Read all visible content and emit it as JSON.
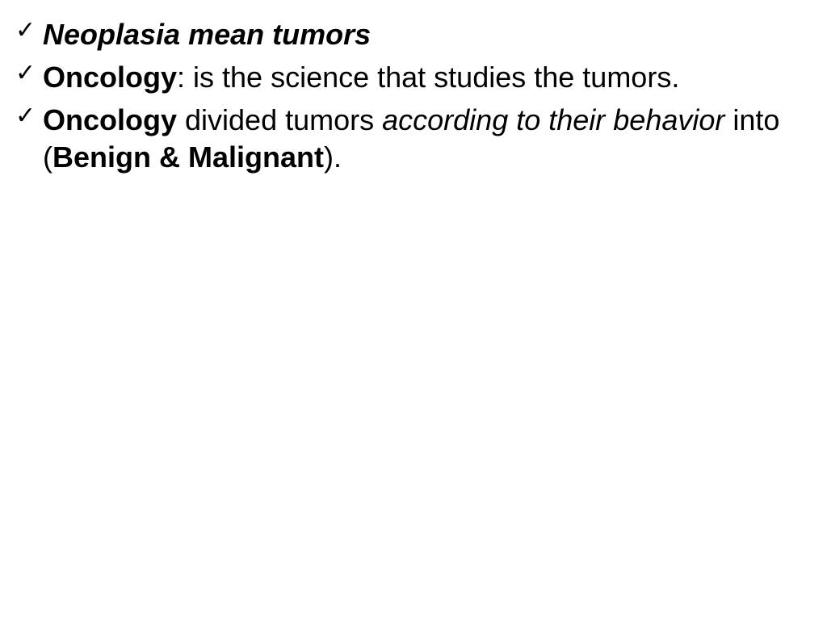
{
  "slide": {
    "background_color": "#ffffff",
    "text_color": "#000000",
    "font_family": "Verdana",
    "font_size": 36,
    "bullet_char": "✓",
    "bullets": [
      {
        "runs": [
          {
            "text": "Neoplasia mean tumors",
            "style": "bold-italic"
          }
        ]
      },
      {
        "runs": [
          {
            "text": "Oncology",
            "style": "bold"
          },
          {
            "text": ": is the science that studies the tumors.",
            "style": "normal"
          }
        ]
      },
      {
        "runs": [
          {
            "text": "Oncology",
            "style": "bold"
          },
          {
            "text": " divided tumors ",
            "style": "normal"
          },
          {
            "text": "according to their behavior   ",
            "style": "italic"
          },
          {
            "text": "into (",
            "style": "normal"
          },
          {
            "text": "Benign & Malignant",
            "style": "bold"
          },
          {
            "text": ").",
            "style": "normal"
          }
        ]
      }
    ]
  }
}
